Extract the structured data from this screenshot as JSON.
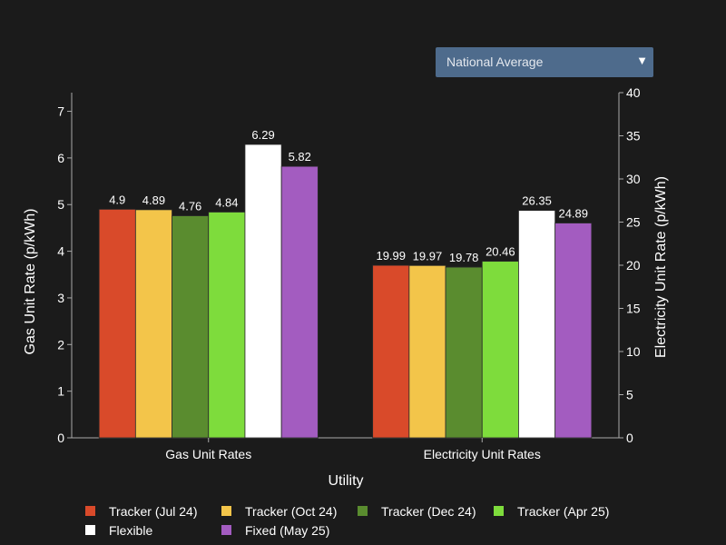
{
  "region_select": {
    "selected": "National Average",
    "arrow_glyph": "▼"
  },
  "chart_data": {
    "type": "bar",
    "xlabel": "Utility",
    "ylabel_left": "Gas Unit Rate (p/kWh)",
    "ylabel_right": "Electricity Unit Rate (p/kWh)",
    "ylim_left": [
      0,
      7.4
    ],
    "ylim_right": [
      0,
      40
    ],
    "yticks_left": [
      0,
      1,
      2,
      3,
      4,
      5,
      6,
      7
    ],
    "yticks_right": [
      0,
      5,
      10,
      15,
      20,
      25,
      30,
      35,
      40
    ],
    "grid": false,
    "legend_position": "bottom",
    "categories": [
      "Gas Unit Rates",
      "Electricity Unit Rates"
    ],
    "category_axis": [
      "left",
      "right"
    ],
    "series": [
      {
        "name": "Tracker (Jul 24)",
        "color": "#d94a2a",
        "values": [
          4.9,
          19.99
        ],
        "labels": [
          "4.9",
          "19.99"
        ]
      },
      {
        "name": "Tracker (Oct 24)",
        "color": "#f3c54a",
        "values": [
          4.89,
          19.97
        ],
        "labels": [
          "4.89",
          "19.97"
        ]
      },
      {
        "name": "Tracker (Dec 24)",
        "color": "#5a8c2f",
        "values": [
          4.76,
          19.78
        ],
        "labels": [
          "4.76",
          "19.78"
        ]
      },
      {
        "name": "Tracker (Apr 25)",
        "color": "#7edc3c",
        "values": [
          4.84,
          20.46
        ],
        "labels": [
          "4.84",
          "20.46"
        ]
      },
      {
        "name": "Flexible",
        "color": "#ffffff",
        "values": [
          6.29,
          26.35
        ],
        "labels": [
          "6.29",
          "26.35"
        ]
      },
      {
        "name": "Fixed (May 25)",
        "color": "#a35cc0",
        "values": [
          5.82,
          24.89
        ],
        "labels": [
          "5.82",
          "24.89"
        ]
      }
    ]
  }
}
